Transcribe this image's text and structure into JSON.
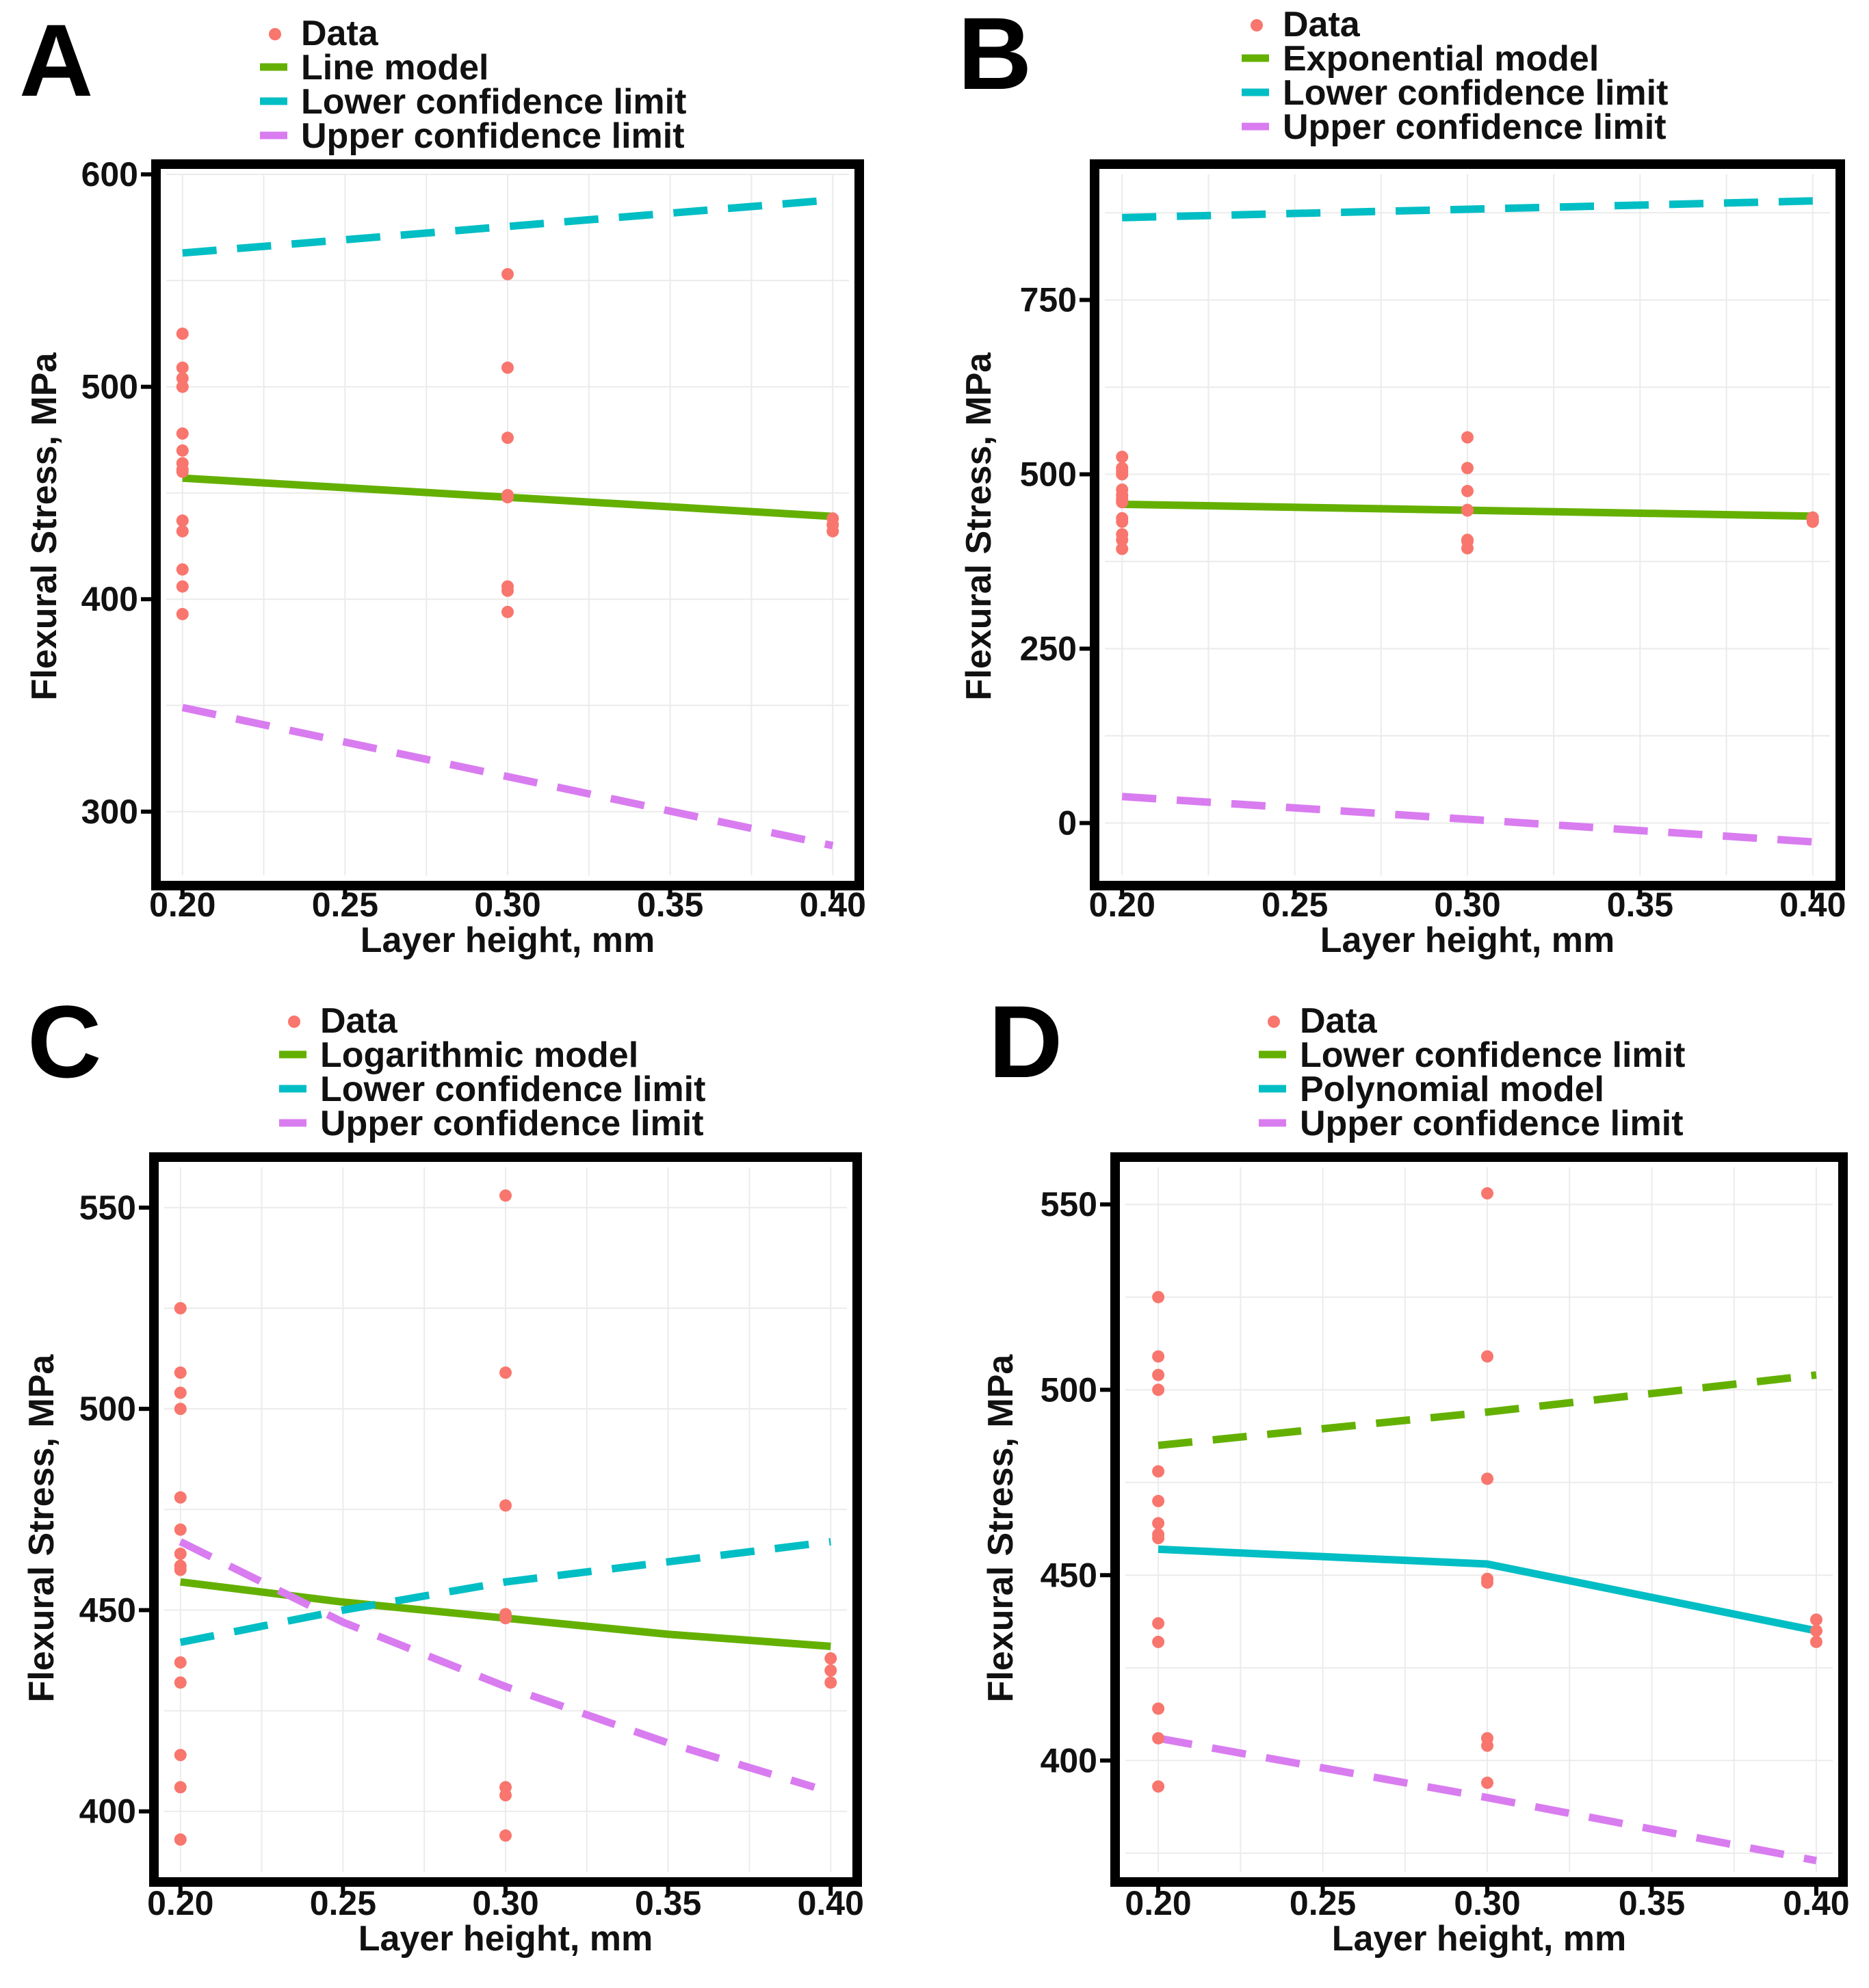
{
  "colors": {
    "data": "#f8766d",
    "green": "#64b000",
    "cyan": "#00bec4",
    "purple": "#d97cf0",
    "grid": "#ebebeb",
    "frame": "#000000"
  },
  "chart_data": [
    {
      "panel": "A",
      "type": "scatter",
      "xlabel": "Layer height, mm",
      "ylabel": "Flexural Stress, MPa",
      "xlim": [
        0.195,
        0.405
      ],
      "ylim": [
        270,
        600
      ],
      "xticks": [
        0.2,
        0.25,
        0.3,
        0.35,
        0.4
      ],
      "xtick_labels": [
        "0.20",
        "0.25",
        "0.30",
        "0.35",
        "0.40"
      ],
      "yticks": [
        300,
        400,
        500,
        600
      ],
      "ytick_labels": [
        "300",
        "400",
        "500",
        "600"
      ],
      "legend": [
        {
          "label": "Data",
          "kind": "point",
          "color": "#f8766d"
        },
        {
          "label": "Line model",
          "kind": "solid",
          "color": "#64b000"
        },
        {
          "label": "Lower confidence limit",
          "kind": "dashed",
          "color": "#00bec4"
        },
        {
          "label": "Upper confidence limit",
          "kind": "dashed",
          "color": "#d97cf0"
        }
      ],
      "points": {
        "x": [
          0.2,
          0.2,
          0.2,
          0.2,
          0.2,
          0.2,
          0.2,
          0.2,
          0.2,
          0.2,
          0.2,
          0.2,
          0.2,
          0.2,
          0.3,
          0.3,
          0.3,
          0.3,
          0.3,
          0.3,
          0.3,
          0.3,
          0.4,
          0.4,
          0.4
        ],
        "y": [
          525,
          509,
          504,
          500,
          478,
          470,
          464,
          461,
          437,
          432,
          414,
          406,
          393,
          460,
          553,
          509,
          476,
          449,
          448,
          406,
          404,
          394,
          438,
          435,
          432
        ]
      },
      "series": [
        {
          "name": "Line model",
          "style": "solid",
          "color": "#64b000",
          "x": [
            0.2,
            0.4
          ],
          "y": [
            457,
            439
          ]
        },
        {
          "name": "Lower confidence limit",
          "style": "dashed",
          "color": "#00bec4",
          "x": [
            0.2,
            0.4
          ],
          "y": [
            563,
            588
          ]
        },
        {
          "name": "Upper confidence limit",
          "style": "dashed",
          "color": "#d97cf0",
          "x": [
            0.2,
            0.4
          ],
          "y": [
            349,
            284
          ]
        }
      ]
    },
    {
      "panel": "B",
      "type": "scatter",
      "xlabel": "Layer height, mm",
      "ylabel": "Flexural Stress, MPa",
      "xlim": [
        0.195,
        0.405
      ],
      "ylim": [
        -75,
        930
      ],
      "xticks": [
        0.2,
        0.25,
        0.3,
        0.35,
        0.4
      ],
      "xtick_labels": [
        "0.20",
        "0.25",
        "0.30",
        "0.35",
        "0.40"
      ],
      "yticks": [
        0,
        250,
        500,
        750
      ],
      "ytick_labels": [
        "0",
        "250",
        "500",
        "750"
      ],
      "legend": [
        {
          "label": "Data",
          "kind": "point",
          "color": "#f8766d"
        },
        {
          "label": "Exponential model",
          "kind": "solid",
          "color": "#64b000"
        },
        {
          "label": "Lower confidence limit",
          "kind": "dashed",
          "color": "#00bec4"
        },
        {
          "label": "Upper confidence limit",
          "kind": "dashed",
          "color": "#d97cf0"
        }
      ],
      "points": {
        "x": [
          0.2,
          0.2,
          0.2,
          0.2,
          0.2,
          0.2,
          0.2,
          0.2,
          0.2,
          0.2,
          0.2,
          0.2,
          0.2,
          0.2,
          0.3,
          0.3,
          0.3,
          0.3,
          0.3,
          0.3,
          0.3,
          0.3,
          0.4,
          0.4,
          0.4
        ],
        "y": [
          525,
          509,
          504,
          500,
          478,
          470,
          464,
          461,
          437,
          432,
          414,
          406,
          393,
          460,
          553,
          509,
          476,
          449,
          448,
          406,
          404,
          394,
          438,
          435,
          432
        ]
      },
      "series": [
        {
          "name": "Exponential model",
          "style": "solid",
          "color": "#64b000",
          "x": [
            0.2,
            0.4
          ],
          "y": [
            457,
            440
          ]
        },
        {
          "name": "Lower confidence limit",
          "style": "dashed",
          "color": "#00bec4",
          "x": [
            0.2,
            0.4
          ],
          "y": [
            868,
            892
          ]
        },
        {
          "name": "Upper confidence limit",
          "style": "dashed",
          "color": "#d97cf0",
          "x": [
            0.2,
            0.4
          ],
          "y": [
            38,
            -27
          ]
        }
      ]
    },
    {
      "panel": "C",
      "type": "scatter",
      "xlabel": "Layer height, mm",
      "ylabel": "Flexural Stress, MPa",
      "xlim": [
        0.195,
        0.405
      ],
      "ylim": [
        385,
        560
      ],
      "xticks": [
        0.2,
        0.25,
        0.3,
        0.35,
        0.4
      ],
      "xtick_labels": [
        "0.20",
        "0.25",
        "0.30",
        "0.35",
        "0.40"
      ],
      "yticks": [
        400,
        450,
        500,
        550
      ],
      "ytick_labels": [
        "400",
        "450",
        "500",
        "550"
      ],
      "legend": [
        {
          "label": "Data",
          "kind": "point",
          "color": "#f8766d"
        },
        {
          "label": "Logarithmic model",
          "kind": "solid",
          "color": "#64b000"
        },
        {
          "label": "Lower confidence limit",
          "kind": "dashed",
          "color": "#00bec4"
        },
        {
          "label": "Upper confidence limit",
          "kind": "dashed",
          "color": "#d97cf0"
        }
      ],
      "points": {
        "x": [
          0.2,
          0.2,
          0.2,
          0.2,
          0.2,
          0.2,
          0.2,
          0.2,
          0.2,
          0.2,
          0.2,
          0.2,
          0.2,
          0.2,
          0.3,
          0.3,
          0.3,
          0.3,
          0.3,
          0.3,
          0.3,
          0.3,
          0.4,
          0.4,
          0.4
        ],
        "y": [
          525,
          509,
          504,
          500,
          478,
          470,
          464,
          461,
          437,
          432,
          414,
          406,
          393,
          460,
          553,
          509,
          476,
          449,
          448,
          406,
          404,
          394,
          438,
          435,
          432
        ]
      },
      "series": [
        {
          "name": "Logarithmic model",
          "style": "solid",
          "color": "#64b000",
          "x": [
            0.2,
            0.25,
            0.3,
            0.35,
            0.4
          ],
          "y": [
            457,
            452,
            448,
            444,
            441
          ]
        },
        {
          "name": "Lower confidence limit",
          "style": "dashed",
          "color": "#00bec4",
          "x": [
            0.2,
            0.25,
            0.3,
            0.35,
            0.4
          ],
          "y": [
            442,
            450,
            457,
            462,
            467
          ]
        },
        {
          "name": "Upper confidence limit",
          "style": "dashed",
          "color": "#d97cf0",
          "x": [
            0.2,
            0.25,
            0.3,
            0.35,
            0.395
          ],
          "y": [
            467,
            447,
            431,
            417,
            406
          ]
        }
      ]
    },
    {
      "panel": "D",
      "type": "scatter",
      "xlabel": "Layer height, mm",
      "ylabel": "Flexural Stress, MPa",
      "xlim": [
        0.19,
        0.405
      ],
      "ylim": [
        370,
        560
      ],
      "xticks": [
        0.2,
        0.25,
        0.3,
        0.35,
        0.4
      ],
      "xtick_labels": [
        "0.20",
        "0.25",
        "0.30",
        "0.35",
        "0.40"
      ],
      "yticks": [
        400,
        450,
        500,
        550
      ],
      "ytick_labels": [
        "400",
        "450",
        "500",
        "550"
      ],
      "legend": [
        {
          "label": "Data",
          "kind": "point",
          "color": "#f8766d"
        },
        {
          "label": "Lower confidence limit",
          "kind": "dashed",
          "color": "#64b000"
        },
        {
          "label": "Polynomial model",
          "kind": "solid",
          "color": "#00bec4"
        },
        {
          "label": "Upper confidence limit",
          "kind": "dashed",
          "color": "#d97cf0"
        }
      ],
      "points": {
        "x": [
          0.2,
          0.2,
          0.2,
          0.2,
          0.2,
          0.2,
          0.2,
          0.2,
          0.2,
          0.2,
          0.2,
          0.2,
          0.2,
          0.2,
          0.3,
          0.3,
          0.3,
          0.3,
          0.3,
          0.3,
          0.3,
          0.3,
          0.4,
          0.4,
          0.4
        ],
        "y": [
          525,
          509,
          504,
          500,
          478,
          470,
          464,
          461,
          437,
          432,
          414,
          406,
          393,
          460,
          553,
          509,
          476,
          449,
          448,
          406,
          404,
          394,
          438,
          435,
          432
        ]
      },
      "series": [
        {
          "name": "Lower confidence limit",
          "style": "dashed",
          "color": "#64b000",
          "x": [
            0.2,
            0.3,
            0.4
          ],
          "y": [
            485,
            494,
            504
          ]
        },
        {
          "name": "Polynomial model",
          "style": "solid",
          "color": "#00bec4",
          "x": [
            0.2,
            0.3,
            0.4
          ],
          "y": [
            457,
            453,
            435
          ]
        },
        {
          "name": "Upper confidence limit",
          "style": "dashed",
          "color": "#d97cf0",
          "x": [
            0.2,
            0.3,
            0.4
          ],
          "y": [
            406,
            390,
            373
          ]
        }
      ]
    }
  ]
}
